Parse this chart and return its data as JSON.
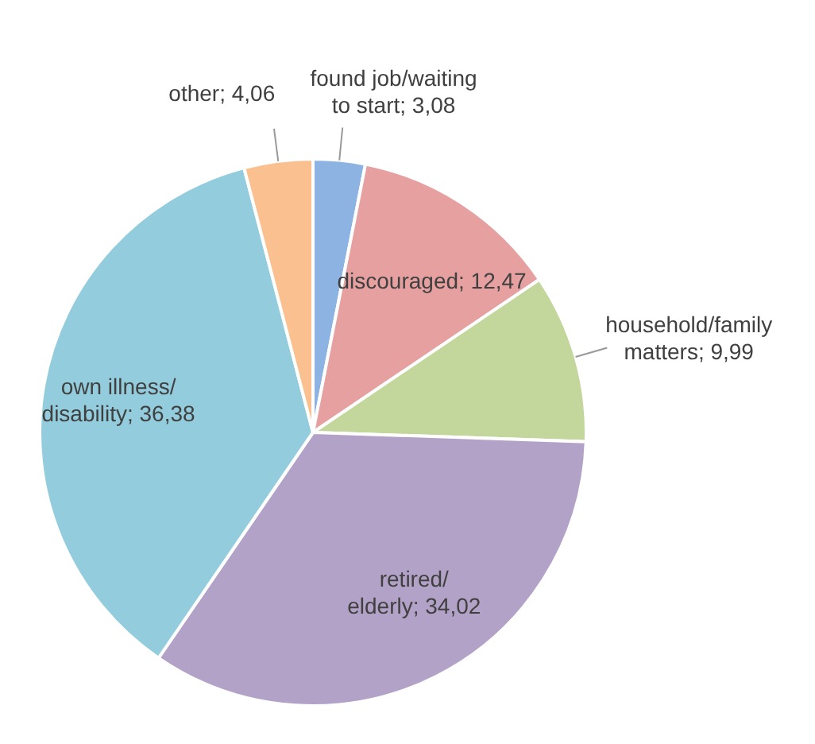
{
  "chart_data": {
    "type": "pie",
    "categories": [
      "found job/waiting to start",
      "discouraged",
      "household/family matters",
      "retired/elderly",
      "own illness/disability",
      "other"
    ],
    "values": [
      3.08,
      12.47,
      9.99,
      34.02,
      36.38,
      4.06
    ],
    "value_labels": [
      "3,08",
      "12,47",
      "9,99",
      "34,02",
      "36,38",
      "4,06"
    ],
    "colors": [
      "#8db3e2",
      "#e6a0a0",
      "#c3d69b",
      "#b3a2c7",
      "#93cddd",
      "#fac090"
    ]
  }
}
